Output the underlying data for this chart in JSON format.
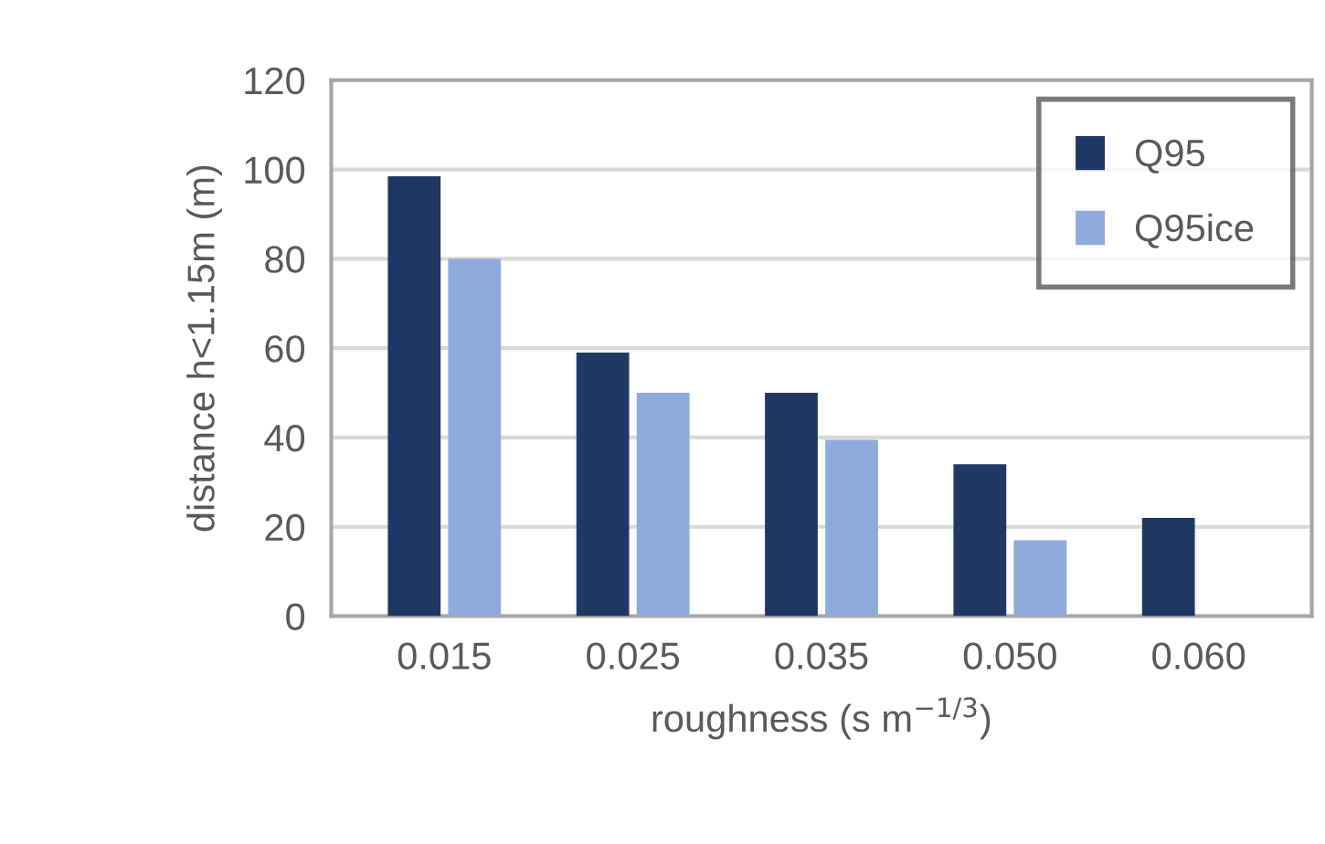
{
  "chart_data": {
    "type": "bar",
    "xlabel": "roughness (s m$^{−1/3}$)",
    "ylabel": "distance h<1.15m (m)",
    "categories": [
      "0.015",
      "0.025",
      "0.035",
      "0.050",
      "0.060"
    ],
    "series": [
      {
        "name": "Q95",
        "color": "#203864",
        "values": [
          98.5,
          59,
          50,
          34,
          22
        ]
      },
      {
        "name": "Q95ice",
        "color": "#8faadc",
        "values": [
          80,
          50,
          39.5,
          17,
          null
        ]
      }
    ],
    "ylim": [
      0,
      120
    ],
    "yticks": [
      0,
      20,
      40,
      60,
      80,
      100,
      120
    ],
    "grid": "y",
    "legend": "top right"
  }
}
